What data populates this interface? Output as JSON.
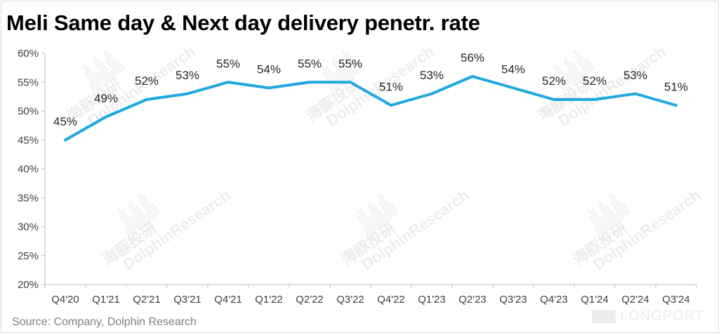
{
  "chart_data": {
    "type": "line",
    "title": "Meli Same day & Next day delivery penetr. rate",
    "categories": [
      "Q4'20",
      "Q1'21",
      "Q2'21",
      "Q3'21",
      "Q4'21",
      "Q1'22",
      "Q2'22",
      "Q3'22",
      "Q4'22",
      "Q1'23",
      "Q2'23",
      "Q3'23",
      "Q4'23",
      "Q1'24",
      "Q2'24",
      "Q3'24"
    ],
    "values": [
      45,
      49,
      52,
      53,
      55,
      54,
      55,
      55,
      51,
      53,
      56,
      54,
      52,
      52,
      53,
      51
    ],
    "data_labels": [
      "45%",
      "49%",
      "52%",
      "53%",
      "55%",
      "54%",
      "55%",
      "55%",
      "51%",
      "53%",
      "56%",
      "54%",
      "52%",
      "52%",
      "53%",
      "51%"
    ],
    "y_ticks": [
      20,
      25,
      30,
      35,
      40,
      45,
      50,
      55,
      60
    ],
    "y_tick_labels": [
      "20%",
      "25%",
      "30%",
      "35%",
      "40%",
      "45%",
      "50%",
      "55%",
      "60%"
    ],
    "ylim": [
      20,
      60
    ],
    "xlabel": "",
    "ylabel": "",
    "grid": false,
    "legend": "none",
    "line_color": "#1fa8e0"
  },
  "source": "Source: Company, Dolphin Research",
  "watermark": {
    "text": "DolphinResearch",
    "cn_text": "海豚投研",
    "brand": "LONGPORT"
  }
}
